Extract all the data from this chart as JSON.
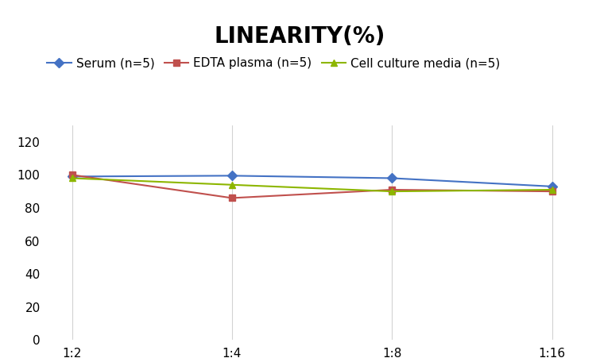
{
  "title": "LINEARITY(%)",
  "x_labels": [
    "1:2",
    "1:4",
    "1:8",
    "1:16"
  ],
  "series": [
    {
      "label": "Serum (n=5)",
      "values": [
        99,
        99.5,
        98,
        93
      ],
      "color": "#4472C4",
      "marker": "D"
    },
    {
      "label": "EDTA plasma (n=5)",
      "values": [
        100,
        86,
        91,
        90
      ],
      "color": "#C0504D",
      "marker": "s"
    },
    {
      "label": "Cell culture media (n=5)",
      "values": [
        98,
        94,
        90,
        91
      ],
      "color": "#8DB600",
      "marker": "^"
    }
  ],
  "ylim": [
    0,
    130
  ],
  "yticks": [
    0,
    20,
    40,
    60,
    80,
    100,
    120
  ],
  "title_fontsize": 20,
  "legend_fontsize": 11,
  "tick_fontsize": 11,
  "background_color": "#ffffff",
  "grid_color": "#d3d3d3"
}
